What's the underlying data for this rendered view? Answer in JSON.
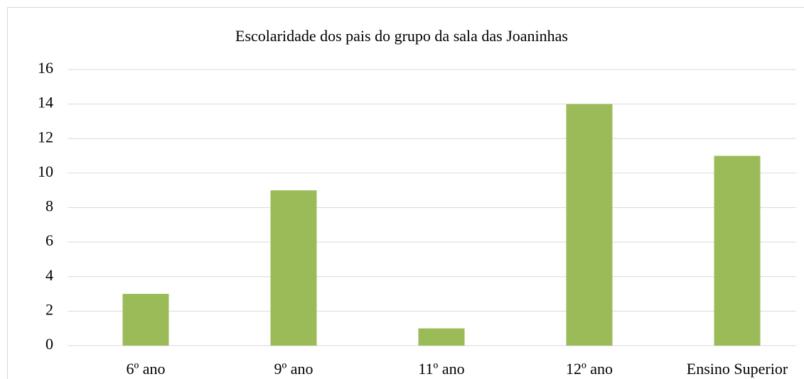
{
  "chart_data": {
    "type": "bar",
    "title": "Escolaridade dos pais do grupo da sala das Joaninhas",
    "categories": [
      "6º ano",
      "9º ano",
      "11º ano",
      "12º ano",
      "Ensino Superior"
    ],
    "values": [
      3,
      9,
      1,
      14,
      11
    ],
    "color": "#9bbb59",
    "ylim": [
      0,
      16
    ],
    "yticks": [
      0,
      2,
      4,
      6,
      8,
      10,
      12,
      14,
      16
    ],
    "grid": true
  }
}
